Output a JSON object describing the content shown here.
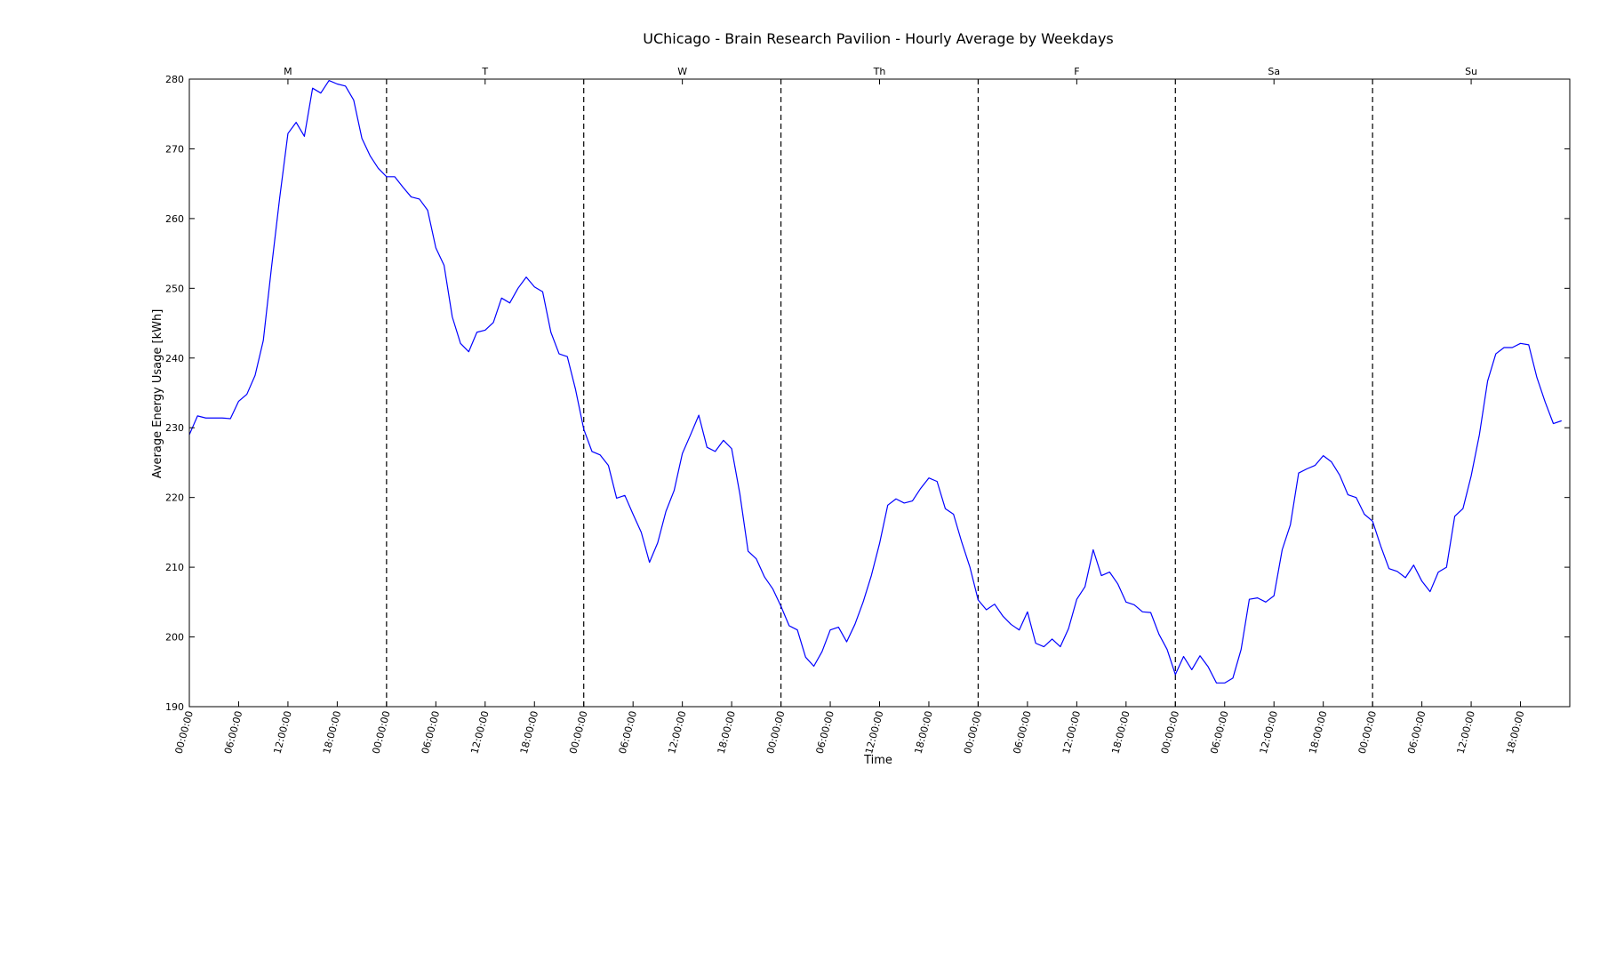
{
  "chart_data": {
    "type": "line",
    "title": "UChicago - Brain Research Pavilion - Hourly Average by Weekdays",
    "xlabel": "Time",
    "ylabel": "Average Energy Usage [kWh]",
    "ylim": [
      190,
      280
    ],
    "xlim": [
      0,
      168
    ],
    "grid": false,
    "line_color": "#0000ff",
    "divider_color": "#000000",
    "y_ticks": [
      190,
      200,
      210,
      220,
      230,
      240,
      250,
      260,
      270,
      280
    ],
    "x_tick_hours": [
      0,
      6,
      12,
      18,
      24,
      30,
      36,
      42,
      48,
      54,
      60,
      66,
      72,
      78,
      84,
      90,
      96,
      102,
      108,
      114,
      120,
      126,
      132,
      138,
      144,
      150,
      156,
      162
    ],
    "x_tick_labels": [
      "00:00:00",
      "06:00:00",
      "12:00:00",
      "18:00:00",
      "00:00:00",
      "06:00:00",
      "12:00:00",
      "18:00:00",
      "00:00:00",
      "06:00:00",
      "12:00:00",
      "18:00:00",
      "00:00:00",
      "06:00:00",
      "12:00:00",
      "18:00:00",
      "00:00:00",
      "06:00:00",
      "12:00:00",
      "18:00:00",
      "00:00:00",
      "06:00:00",
      "12:00:00",
      "18:00:00",
      "00:00:00",
      "06:00:00",
      "12:00:00",
      "18:00:00"
    ],
    "day_dividers": [
      24,
      48,
      72,
      96,
      120,
      144
    ],
    "day_labels": [
      {
        "hour": 12,
        "label": "M"
      },
      {
        "hour": 36,
        "label": "T"
      },
      {
        "hour": 60,
        "label": "W"
      },
      {
        "hour": 84,
        "label": "Th"
      },
      {
        "hour": 108,
        "label": "F"
      },
      {
        "hour": 132,
        "label": "Sa"
      },
      {
        "hour": 156,
        "label": "Su"
      }
    ],
    "series": [
      {
        "values": [
          229,
          231.7,
          231.4,
          231.4,
          231.4,
          231.3,
          233.8,
          234.8,
          237.5,
          242.5,
          253,
          263,
          272.2,
          273.8,
          271.8,
          278.7,
          278,
          279.8,
          279.3,
          279,
          277,
          271.5,
          269,
          267.2,
          266,
          266,
          264.5,
          263.1,
          262.8,
          261.2,
          255.8,
          253.3,
          245.9,
          242.1,
          240.9,
          243.7,
          244,
          245.1,
          248.6,
          247.9,
          250,
          251.6,
          250.2,
          249.5,
          243.7,
          240.6,
          240.2,
          235.5,
          229.8,
          226.6,
          226.1,
          224.6,
          219.9,
          220.3,
          217.6,
          215,
          210.7,
          213.5,
          218,
          221,
          226.3,
          229,
          231.8,
          227.2,
          226.6,
          228.2,
          227,
          220.5,
          212.3,
          211.2,
          208.6,
          206.9,
          204.4,
          201.6,
          201,
          197.1,
          195.8,
          197.9,
          201,
          201.4,
          199.3,
          201.8,
          205,
          208.8,
          213.4,
          218.9,
          219.8,
          219.2,
          219.5,
          221.3,
          222.8,
          222.3,
          218.4,
          217.6,
          213.6,
          210,
          205.3,
          203.9,
          204.7,
          203,
          201.8,
          201,
          203.6,
          199.1,
          198.6,
          199.7,
          198.6,
          201.2,
          205.4,
          207.2,
          212.5,
          208.8,
          209.3,
          207.6,
          205,
          204.6,
          203.6,
          203.5,
          200.4,
          198.2,
          194.6,
          197.2,
          195.3,
          197.3,
          195.7,
          193.4,
          193.4,
          194.1,
          198.2,
          205.4,
          205.6,
          205,
          205.9,
          212.5,
          216.1,
          223.5,
          224.1,
          224.6,
          226,
          225.1,
          223.2,
          220.4,
          220,
          217.6,
          216.6,
          213,
          209.8,
          209.4,
          208.5,
          210.3,
          208,
          206.5,
          209.3,
          210,
          217.3,
          218.4,
          223.1,
          229,
          236.7,
          240.6,
          241.5,
          241.5,
          242.1,
          241.9,
          237.2,
          233.7,
          230.6,
          231
        ]
      }
    ]
  }
}
